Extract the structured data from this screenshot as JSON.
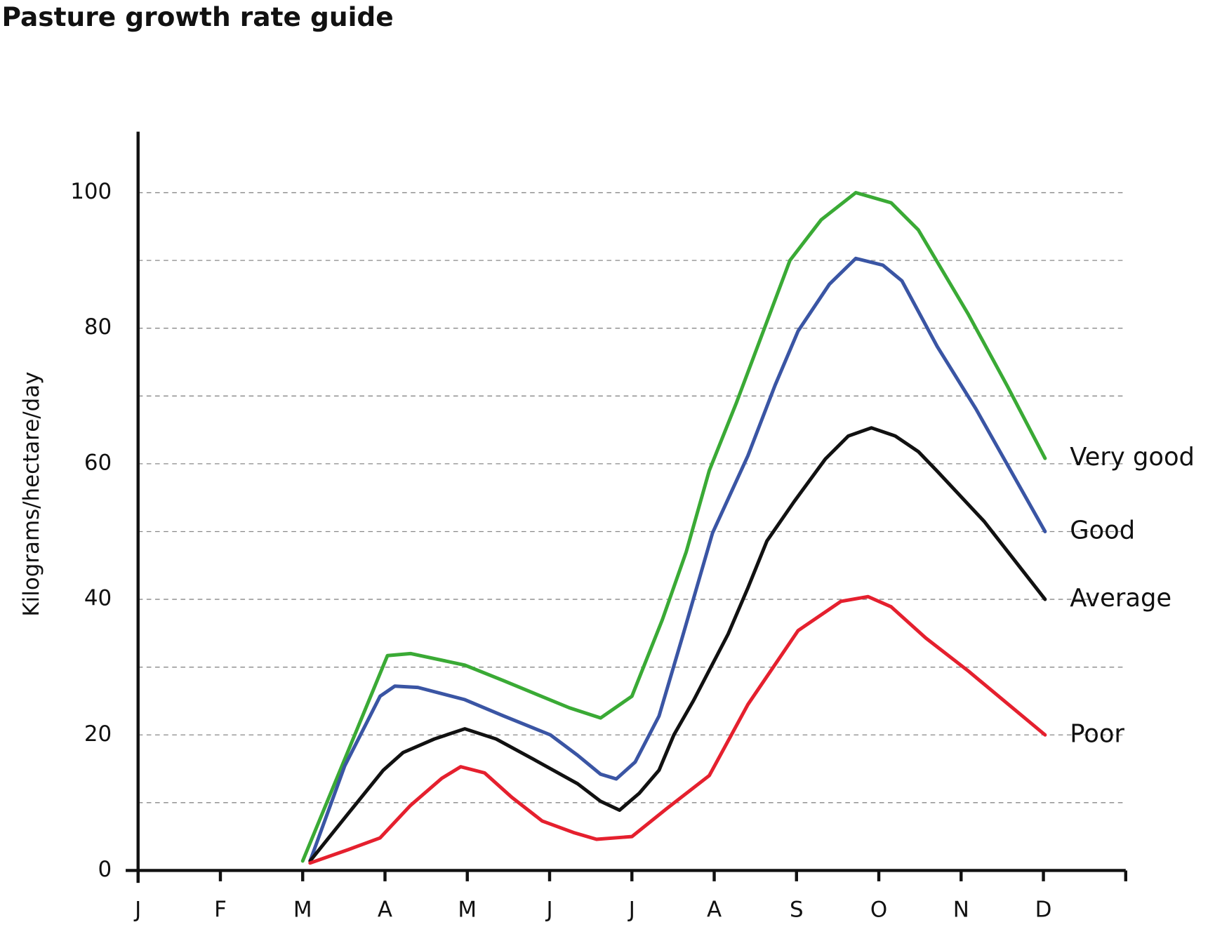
{
  "chart_data": {
    "type": "line",
    "title": "Pasture growth rate guide",
    "y_label": "Kilograms/hectare/day",
    "xlim": [
      0,
      12
    ],
    "xticks": [
      {
        "value": 0,
        "label": "J"
      },
      {
        "value": 1,
        "label": "F"
      },
      {
        "value": 2,
        "label": "M"
      },
      {
        "value": 3,
        "label": "A"
      },
      {
        "value": 4,
        "label": "M"
      },
      {
        "value": 5,
        "label": "J"
      },
      {
        "value": 6,
        "label": "J"
      },
      {
        "value": 7,
        "label": "A"
      },
      {
        "value": 8,
        "label": "S"
      },
      {
        "value": 9,
        "label": "O"
      },
      {
        "value": 10,
        "label": "N"
      },
      {
        "value": 11,
        "label": "D"
      }
    ],
    "ylim": [
      0,
      109
    ],
    "yticks": [
      0,
      20,
      40,
      60,
      80,
      100
    ],
    "minor_yticks": [
      10,
      30,
      50,
      70,
      90
    ],
    "grid": true,
    "series": [
      {
        "name": "Very good",
        "color": "#3aaa35",
        "x": [
          2.0,
          3.03,
          3.31,
          3.97,
          4.44,
          5.24,
          5.62,
          6.0,
          6.37,
          6.66,
          6.94,
          7.27,
          7.92,
          8.3,
          8.72,
          9.15,
          9.48,
          10.09,
          10.56,
          11.02
        ],
        "values": [
          1.4,
          31.7,
          32,
          30.3,
          28,
          24,
          22.5,
          25.7,
          37,
          47,
          59,
          69,
          90,
          96,
          100,
          98.5,
          94.5,
          82,
          71.5,
          60.8
        ]
      },
      {
        "name": "Good",
        "color": "#3a55a4",
        "x": [
          2.09,
          2.51,
          2.94,
          3.12,
          3.4,
          3.97,
          4.44,
          5.01,
          5.34,
          5.62,
          5.81,
          6.04,
          6.33,
          6.61,
          6.98,
          7.41,
          7.74,
          8.02,
          8.4,
          8.72,
          9.05,
          9.28,
          9.71,
          10.18,
          11.02
        ],
        "values": [
          1.4,
          15.4,
          25.7,
          27.2,
          27,
          25.2,
          22.8,
          20,
          17,
          14.2,
          13.5,
          16,
          22.8,
          34.3,
          49.8,
          61.2,
          71.6,
          79.6,
          86.5,
          90.3,
          89.3,
          87,
          77.3,
          68.1,
          50
        ]
      },
      {
        "name": "Average",
        "color": "#111111",
        "x": [
          2.09,
          2.56,
          2.98,
          3.22,
          3.6,
          3.97,
          4.35,
          4.82,
          5.34,
          5.62,
          5.85,
          6.09,
          6.33,
          6.51,
          6.75,
          7.17,
          7.41,
          7.64,
          7.97,
          8.35,
          8.63,
          8.91,
          9.2,
          9.48,
          9.71,
          10.28,
          11.02
        ],
        "values": [
          1.4,
          8.5,
          14.8,
          17.4,
          19.4,
          20.9,
          19.4,
          16.3,
          12.8,
          10.2,
          8.9,
          11.4,
          14.8,
          20,
          25.1,
          34.9,
          41.7,
          48.6,
          54.4,
          60.7,
          64.1,
          65.3,
          64.1,
          61.8,
          58.9,
          51.5,
          40
        ]
      },
      {
        "name": "Poor",
        "color": "#e5202e",
        "x": [
          2.09,
          2.56,
          2.94,
          3.31,
          3.69,
          3.92,
          4.21,
          4.54,
          4.91,
          5.29,
          5.57,
          6.0,
          6.42,
          6.94,
          7.41,
          8.02,
          8.54,
          8.87,
          9.15,
          9.57,
          10.09,
          11.02
        ],
        "values": [
          1.1,
          3.1,
          4.8,
          9.6,
          13.6,
          15.3,
          14.4,
          10.8,
          7.3,
          5.6,
          4.6,
          5,
          9.1,
          14,
          24.5,
          35.4,
          39.7,
          40.4,
          38.9,
          34.3,
          29.4,
          20
        ]
      }
    ]
  }
}
